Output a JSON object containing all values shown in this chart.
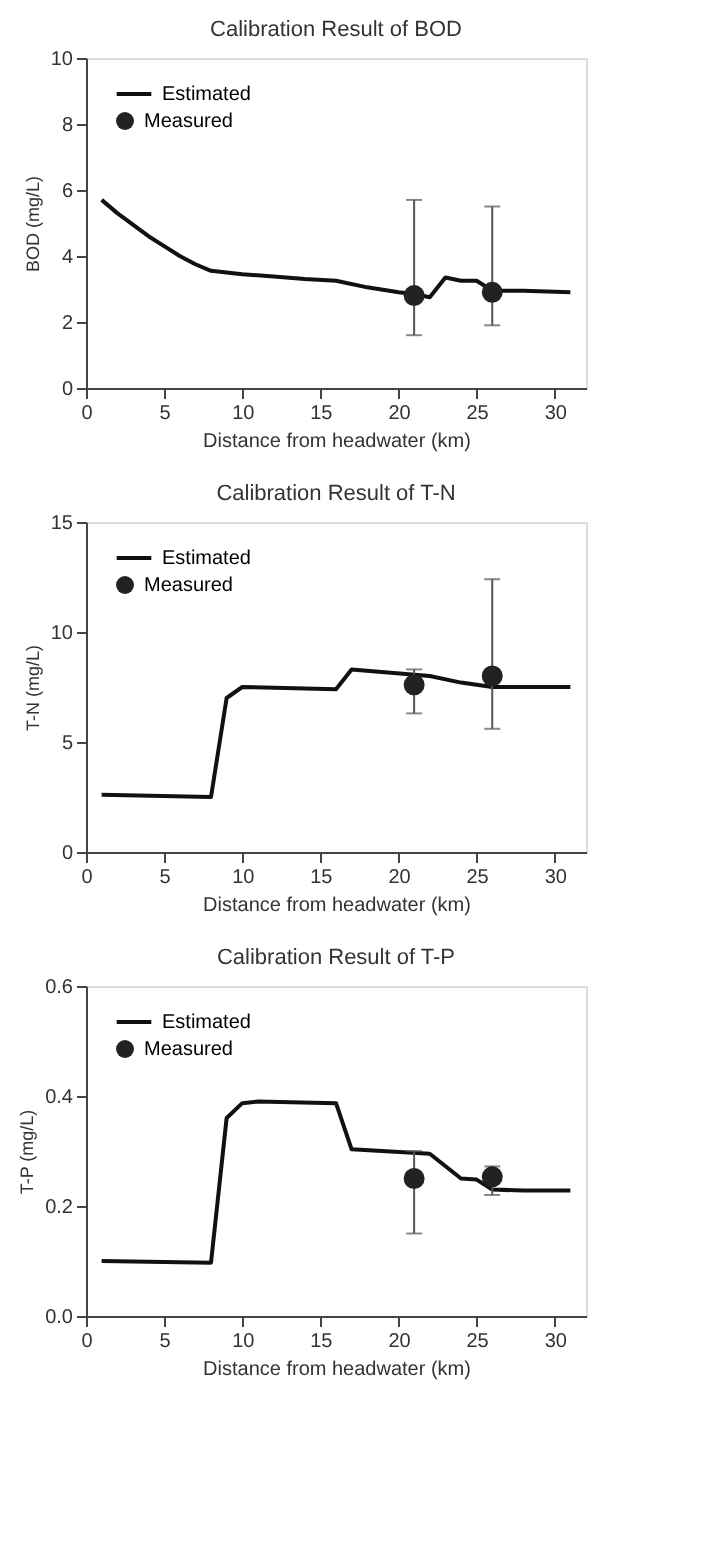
{
  "chart_data": [
    {
      "type": "line",
      "title": "Calibration Result of BOD",
      "xlabel": "Distance from headwater (km)",
      "ylabel": "BOD (mg/L)",
      "xlim": [
        0,
        32
      ],
      "xticks": [
        0,
        5,
        10,
        15,
        20,
        25,
        30
      ],
      "ylim": [
        0,
        10
      ],
      "yticks": [
        0,
        2,
        4,
        6,
        8,
        10
      ],
      "grid": false,
      "legend": "top left",
      "series": [
        {
          "name": "Estimated",
          "type": "line",
          "color": "#111111",
          "marker": "none",
          "line_style": "solid",
          "x": [
            1,
            2,
            3,
            4,
            5,
            6,
            7,
            8,
            9,
            10,
            12,
            14,
            16,
            18,
            20,
            21,
            22,
            23,
            24,
            25,
            26,
            28,
            31
          ],
          "values": [
            5.7,
            5.3,
            4.95,
            4.6,
            4.3,
            4.0,
            3.75,
            3.55,
            3.5,
            3.45,
            3.38,
            3.3,
            3.25,
            3.05,
            2.9,
            2.85,
            2.75,
            3.35,
            3.25,
            3.25,
            2.95,
            2.95,
            2.9
          ]
        },
        {
          "name": "Measured",
          "type": "scatter",
          "color": "#222222",
          "marker": "circle",
          "x": [
            21,
            26
          ],
          "values": [
            2.8,
            2.9
          ],
          "errors": [
            [
              1.6,
              5.7
            ],
            [
              1.9,
              5.5
            ]
          ]
        }
      ]
    },
    {
      "type": "line",
      "title": "Calibration Result of T-N",
      "xlabel": "Distance from headwater (km)",
      "ylabel": "T-N (mg/L)",
      "xlim": [
        0,
        32
      ],
      "xticks": [
        0,
        5,
        10,
        15,
        20,
        25,
        30
      ],
      "ylim": [
        0,
        15
      ],
      "yticks": [
        0,
        5,
        10,
        15
      ],
      "grid": false,
      "legend": "top left",
      "series": [
        {
          "name": "Estimated",
          "type": "line",
          "color": "#111111",
          "marker": "none",
          "line_style": "solid",
          "x": [
            1,
            8,
            9,
            10,
            16,
            17,
            22,
            24,
            26,
            31
          ],
          "values": [
            2.6,
            2.5,
            7.0,
            7.5,
            7.4,
            8.3,
            8.0,
            7.7,
            7.5,
            7.5
          ]
        },
        {
          "name": "Measured",
          "type": "scatter",
          "color": "#222222",
          "marker": "circle",
          "x": [
            21,
            26
          ],
          "values": [
            7.6,
            8.0
          ],
          "errors": [
            [
              6.3,
              8.3
            ],
            [
              5.6,
              12.4
            ]
          ]
        }
      ]
    },
    {
      "type": "line",
      "title": "Calibration Result of T-P",
      "xlabel": "Distance from headwater (km)",
      "ylabel": "T-P (mg/L)",
      "xlim": [
        0,
        32
      ],
      "xticks": [
        0,
        5,
        10,
        15,
        20,
        25,
        30
      ],
      "ylim": [
        0,
        0.6
      ],
      "yticks": [
        {
          "value": 0,
          "label": "0.0"
        },
        0.2,
        0.4,
        0.6
      ],
      "grid": false,
      "legend": "top left",
      "series": [
        {
          "name": "Estimated",
          "type": "line",
          "color": "#111111",
          "marker": "none",
          "line_style": "solid",
          "x": [
            1,
            8,
            9,
            10,
            11,
            16,
            17,
            22,
            24,
            25,
            26,
            28,
            31
          ],
          "values": [
            0.1,
            0.097,
            0.36,
            0.387,
            0.39,
            0.387,
            0.303,
            0.295,
            0.25,
            0.248,
            0.23,
            0.228,
            0.228
          ]
        },
        {
          "name": "Measured",
          "type": "scatter",
          "color": "#222222",
          "marker": "circle",
          "x": [
            21,
            26
          ],
          "values": [
            0.25,
            0.253
          ],
          "errors": [
            [
              0.15,
              0.3
            ],
            [
              0.22,
              0.272
            ]
          ]
        }
      ]
    }
  ]
}
